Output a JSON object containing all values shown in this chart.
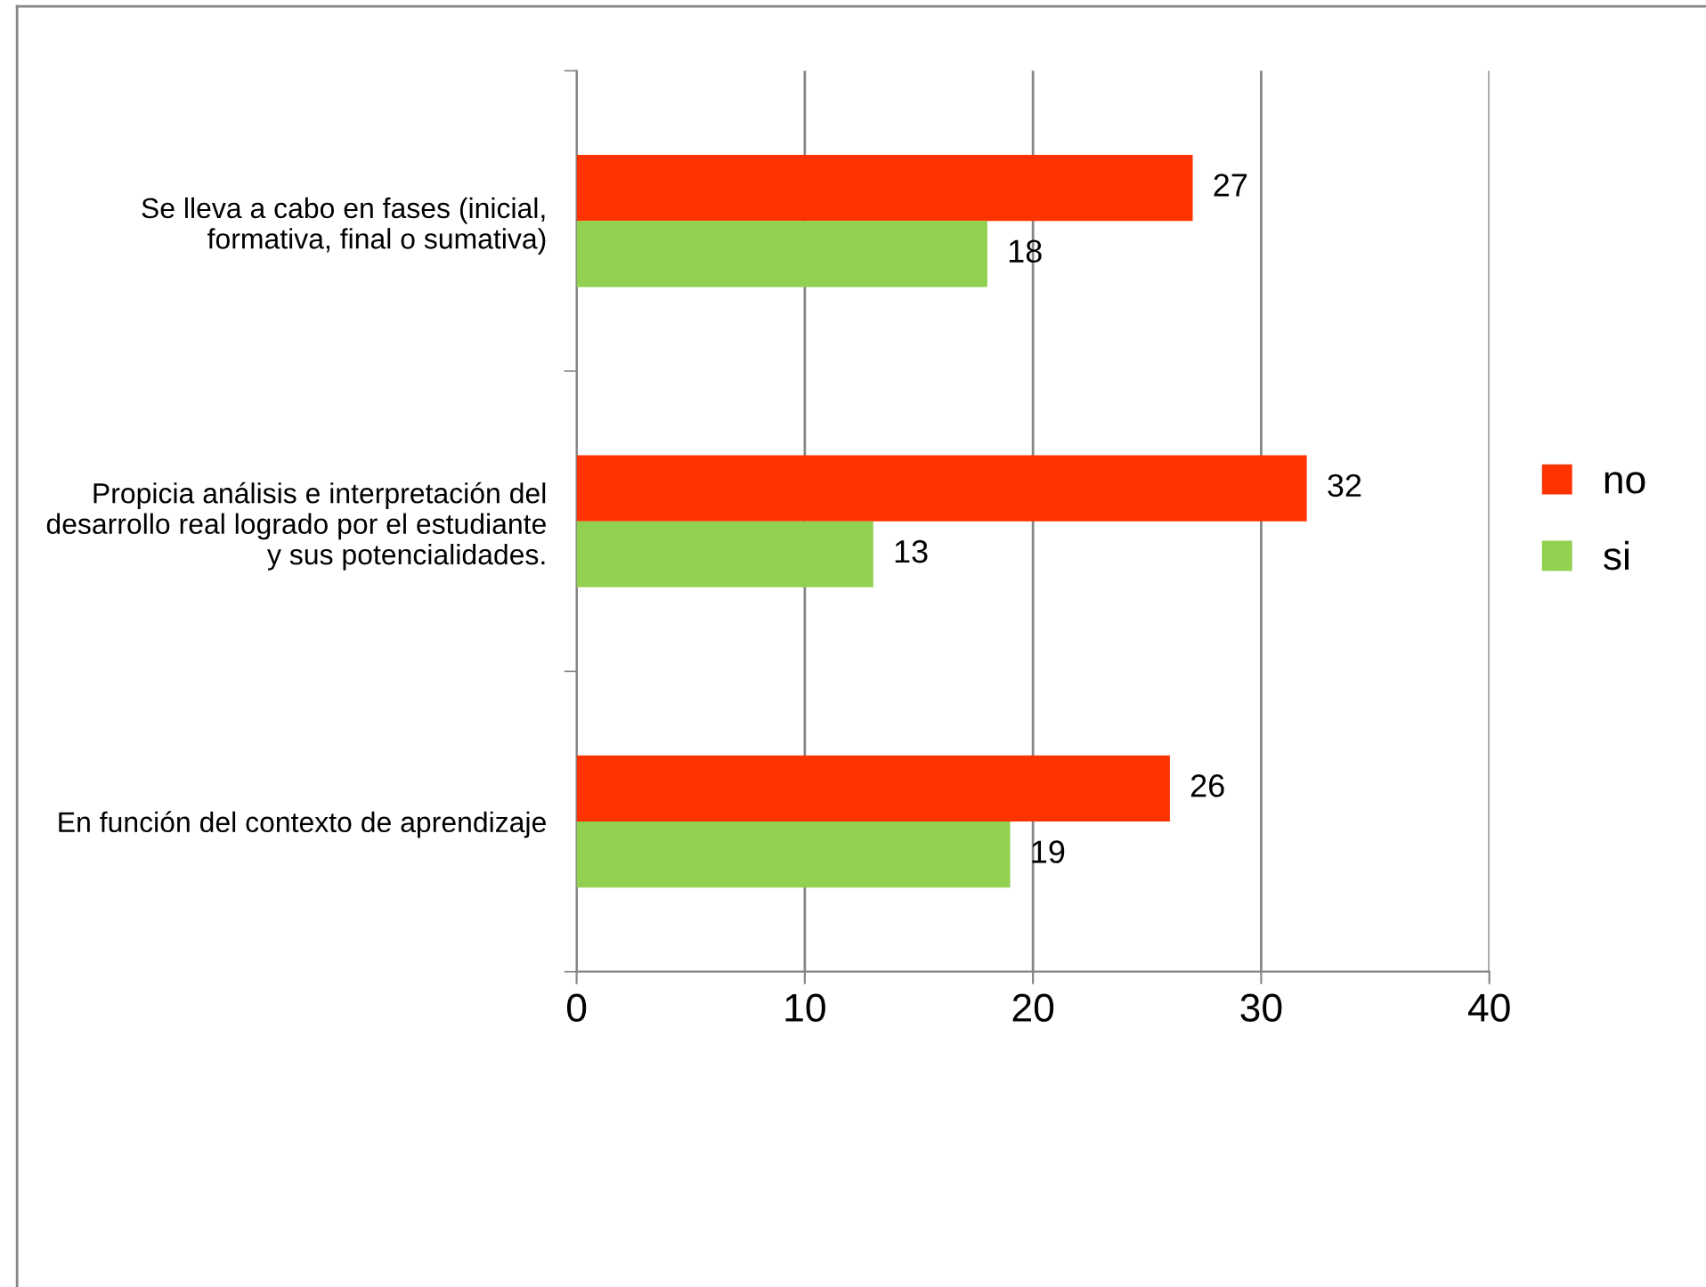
{
  "chart_data": {
    "type": "bar",
    "orientation": "horizontal",
    "categories": [
      "Se lleva a cabo en fases (inicial,\nformativa, final o sumativa)",
      "Propicia análisis e interpretación del\ndesarrollo real logrado por el estudiante\ny sus potencialidades.",
      "En función del contexto de aprendizaje"
    ],
    "series": [
      {
        "name": "no",
        "color": "#ff3300",
        "values": [
          27,
          32,
          26
        ]
      },
      {
        "name": "si",
        "color": "#92d050",
        "values": [
          18,
          13,
          19
        ]
      }
    ],
    "xlim": [
      0,
      40
    ],
    "xticks": [
      0,
      10,
      20,
      30,
      40
    ],
    "grid": "x",
    "legend": "right",
    "data_labels": true
  }
}
